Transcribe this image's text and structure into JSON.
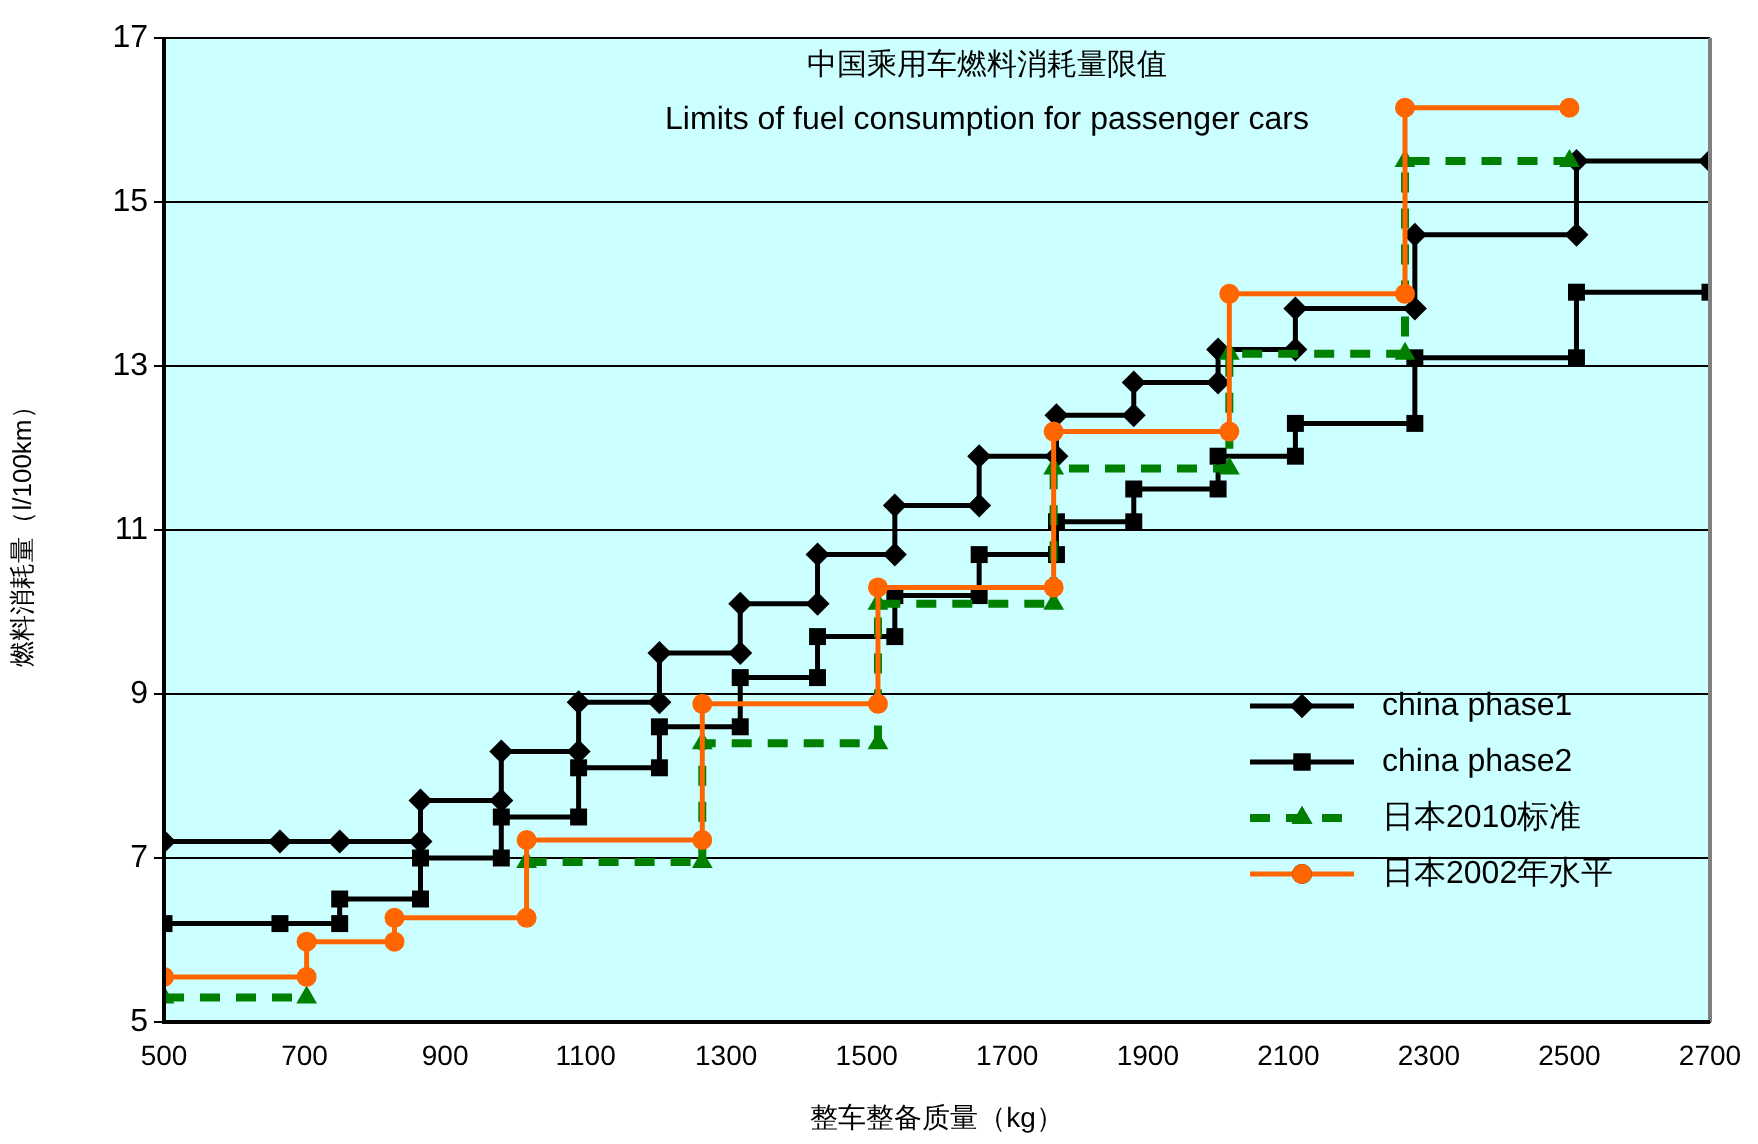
{
  "chart_data": {
    "type": "line",
    "title": "中国乘用车燃料消耗量限值",
    "subtitle": "Limits of fuel consumption for passenger cars",
    "xlabel": "整车整备质量（kg）",
    "ylabel": "燃料消耗量（l/100km）",
    "xlim": [
      500,
      2700
    ],
    "xticks": [
      500,
      700,
      900,
      1100,
      1300,
      1500,
      1700,
      1900,
      2100,
      2300,
      2500,
      2700
    ],
    "ylim": [
      5,
      17
    ],
    "yticks": [
      5,
      7,
      9,
      11,
      13,
      15,
      17
    ],
    "grid": "y",
    "legend": "bottom right",
    "series": [
      {
        "name": "china phase1",
        "color": "#000000",
        "marker": "diamond",
        "line_style": "solid",
        "x": [
          500,
          665,
          750,
          865,
          865,
          980,
          980,
          1090,
          1090,
          1205,
          1205,
          1320,
          1320,
          1430,
          1430,
          1540,
          1540,
          1660,
          1660,
          1770,
          1770,
          1880,
          1880,
          2000,
          2000,
          2110,
          2110,
          2280,
          2280,
          2510,
          2510,
          2700
        ],
        "values": [
          7.2,
          7.2,
          7.2,
          7.2,
          7.7,
          7.7,
          8.3,
          8.3,
          8.9,
          8.9,
          9.5,
          9.5,
          10.1,
          10.1,
          10.7,
          10.7,
          11.3,
          11.3,
          11.9,
          11.9,
          12.4,
          12.4,
          12.8,
          12.8,
          13.2,
          13.2,
          13.7,
          13.7,
          14.6,
          14.6,
          15.5,
          15.5
        ]
      },
      {
        "name": "china phase2",
        "color": "#000000",
        "marker": "square",
        "line_style": "solid",
        "x": [
          500,
          665,
          750,
          750,
          865,
          865,
          980,
          980,
          1090,
          1090,
          1205,
          1205,
          1320,
          1320,
          1430,
          1430,
          1540,
          1540,
          1660,
          1660,
          1770,
          1770,
          1880,
          1880,
          2000,
          2000,
          2110,
          2110,
          2280,
          2280,
          2510,
          2510,
          2700
        ],
        "values": [
          6.2,
          6.2,
          6.2,
          6.5,
          6.5,
          7.0,
          7.0,
          7.5,
          7.5,
          8.1,
          8.1,
          8.6,
          8.6,
          9.2,
          9.2,
          9.7,
          9.7,
          10.2,
          10.2,
          10.7,
          10.7,
          11.1,
          11.1,
          11.5,
          11.5,
          11.9,
          11.9,
          12.3,
          12.3,
          13.1,
          13.1,
          13.9,
          13.9
        ]
      },
      {
        "name": "日本2010标准",
        "color": "#008000",
        "marker": "triangle",
        "line_style": "dashed",
        "x": [
          1016,
          1266,
          1266,
          1516,
          1516,
          1766,
          1766,
          2016,
          2016,
          2266,
          2266,
          2500
        ],
        "values": [
          6.95,
          6.95,
          8.4,
          8.4,
          10.1,
          10.1,
          11.75,
          11.75,
          13.15,
          13.15,
          15.5,
          15.5
        ]
      },
      {
        "color": "#008000",
        "marker": "triangle",
        "line_style": "dashed",
        "x": [
          500,
          703
        ],
        "values": [
          5.3,
          5.3
        ]
      },
      {
        "name": "日本2002年水平",
        "color": "#ff6600",
        "marker": "circle",
        "line_style": "solid",
        "x": [
          500,
          703,
          703,
          828,
          828,
          1016,
          1016,
          1266,
          1266,
          1516,
          1516,
          1766,
          1766,
          2016,
          2016,
          2266,
          2266,
          2500
        ],
        "values": [
          5.55,
          5.55,
          5.98,
          5.98,
          6.27,
          6.27,
          7.22,
          7.22,
          8.88,
          8.88,
          10.3,
          10.3,
          12.2,
          12.2,
          13.88,
          13.88,
          16.15,
          16.15
        ]
      }
    ]
  }
}
